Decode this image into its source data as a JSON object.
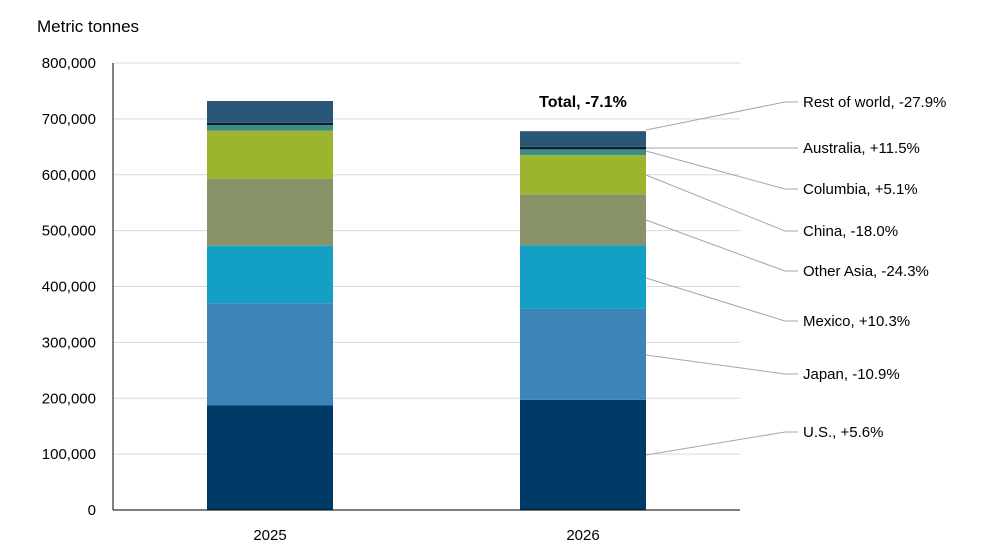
{
  "chart_data": {
    "type": "bar",
    "stacked": true,
    "ylabel": "Metric tonnes",
    "ylim": [
      0,
      800000
    ],
    "yticks": [
      0,
      100000,
      200000,
      300000,
      400000,
      500000,
      600000,
      700000,
      800000
    ],
    "ytick_labels": [
      "0",
      "100,000",
      "200,000",
      "300,000",
      "400,000",
      "500,000",
      "600,000",
      "700,000",
      "800,000"
    ],
    "grid": true,
    "categories": [
      "2025",
      "2026"
    ],
    "series": [
      {
        "name": "U.S., +5.6%",
        "color": "#003a66",
        "values": [
          187000,
          197000
        ]
      },
      {
        "name": "Japan, -10.9%",
        "color": "#3c85b8",
        "values": [
          183000,
          163000
        ]
      },
      {
        "name": "Mexico, +10.3%",
        "color": "#14a0c4",
        "values": [
          103000,
          114000
        ]
      },
      {
        "name": "Other Asia, -24.3%",
        "color": "#88936a",
        "values": [
          120000,
          91000
        ]
      },
      {
        "name": "China, -18.0%",
        "color": "#9bb52f",
        "values": [
          86000,
          70000
        ]
      },
      {
        "name": "Columbia, +5.1%",
        "color": "#3d8d86",
        "values": [
          10000,
          10500
        ]
      },
      {
        "name": "Australia, +11.5%",
        "color": "#0d1e2c",
        "values": [
          4000,
          4500
        ]
      },
      {
        "name": "Rest of world, -27.9%",
        "color": "#2a5678",
        "values": [
          39000,
          28000
        ]
      }
    ],
    "annotation": "Total, -7.1%"
  }
}
